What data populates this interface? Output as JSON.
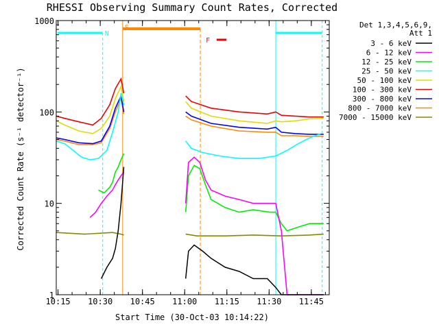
{
  "chart_data": {
    "type": "line",
    "title": "RHESSI Observing Summary Count Rates, Corrected",
    "xlabel": "Start Time (30-Oct-03 10:14:22)",
    "ylabel": "Corrected Count Rate (s⁻¹ detector⁻¹)",
    "y_scale": "log",
    "ylim": [
      1,
      1000
    ],
    "xlim_minutes_after_1014": [
      0,
      97
    ],
    "x_ticks": [
      "10:15",
      "10:30",
      "10:45",
      "11:00",
      "11:15",
      "11:30",
      "11:45"
    ],
    "y_ticks": [
      "1",
      "10",
      "100",
      "1000"
    ],
    "legend": {
      "placement": "right",
      "header": [
        "Det 1,3,4,5,6,9,",
        "Att 1"
      ],
      "entries": [
        {
          "name": "3 - 6 keV",
          "color": "#000000"
        },
        {
          "name": "6 - 12 keV",
          "color": "#ff00ff"
        },
        {
          "name": "12 - 25 keV",
          "color": "#00ee00"
        },
        {
          "name": "25 - 50 keV",
          "color": "#00ffff"
        },
        {
          "name": "50 - 100 keV",
          "color": "#dddd00"
        },
        {
          "name": "100 - 300 keV",
          "color": "#ee0000"
        },
        {
          "name": "300 - 800 keV",
          "color": "#0000ff"
        },
        {
          "name": "800 - 7000 keV",
          "color": "#ff8800"
        },
        {
          "name": "7000 - 15000 keV",
          "color": "#888800"
        }
      ]
    },
    "annotations": {
      "N": "N",
      "S": "S",
      "F": "F",
      "night_color": "#00ffff",
      "saa_color": "#ff8800",
      "flare_color": "#ee0000"
    },
    "series": [
      {
        "name": "100 - 300 keV",
        "x": [
          0,
          3,
          8,
          13,
          16,
          19,
          21,
          23,
          24,
          46,
          48,
          55,
          65,
          75,
          78,
          80,
          85,
          90,
          95
        ],
        "y": [
          90,
          85,
          78,
          72,
          85,
          120,
          180,
          230,
          160,
          150,
          130,
          110,
          100,
          95,
          100,
          92,
          90,
          88,
          88
        ]
      },
      {
        "name": "50 - 100 keV",
        "x": [
          0,
          3,
          8,
          13,
          16,
          19,
          21,
          23,
          24,
          46,
          48,
          55,
          65,
          75,
          78,
          80,
          85,
          90,
          95
        ],
        "y": [
          80,
          72,
          62,
          58,
          66,
          90,
          140,
          190,
          130,
          130,
          110,
          90,
          80,
          75,
          80,
          78,
          80,
          84,
          85
        ]
      },
      {
        "name": "300 - 800 keV",
        "x": [
          0,
          3,
          8,
          13,
          16,
          19,
          21,
          23,
          24,
          46,
          48,
          55,
          65,
          75,
          78,
          80,
          85,
          90,
          95
        ],
        "y": [
          52,
          50,
          46,
          45,
          48,
          70,
          110,
          150,
          100,
          100,
          90,
          75,
          68,
          65,
          68,
          60,
          58,
          57,
          57
        ]
      },
      {
        "name": "800 - 7000 keV",
        "x": [
          0,
          3,
          8,
          13,
          16,
          19,
          21,
          23,
          24,
          46,
          48,
          55,
          65,
          75,
          78,
          80,
          85,
          90,
          95
        ],
        "y": [
          50,
          48,
          44,
          44,
          46,
          66,
          100,
          140,
          95,
          90,
          82,
          70,
          62,
          60,
          60,
          55,
          55,
          54,
          54
        ]
      },
      {
        "name": "25 - 50 keV",
        "x": [
          0,
          3,
          6,
          9,
          12,
          15,
          18,
          20,
          22,
          23,
          24,
          46,
          48,
          52,
          58,
          65,
          72,
          78,
          82,
          86,
          90,
          94
        ],
        "y": [
          48,
          45,
          38,
          32,
          30,
          31,
          38,
          60,
          100,
          160,
          120,
          48,
          40,
          36,
          33,
          31,
          31,
          33,
          38,
          45,
          52,
          58
        ]
      },
      {
        "name": "12 - 25 keV",
        "x": [
          15,
          17,
          19,
          20,
          21,
          22,
          23,
          24,
          46,
          47,
          49,
          51,
          53,
          55,
          60,
          65,
          70,
          76,
          78,
          80,
          82,
          86,
          90,
          95
        ],
        "y": [
          14,
          13,
          15,
          17,
          22,
          25,
          30,
          35,
          8,
          20,
          26,
          24,
          16,
          11,
          9,
          8,
          8.5,
          8,
          8,
          6,
          5,
          5.5,
          6,
          6
        ]
      },
      {
        "name": "6 - 12 keV",
        "x": [
          12,
          14,
          16,
          18,
          20,
          21,
          22,
          23,
          24,
          46,
          47,
          49,
          51,
          53,
          55,
          60,
          65,
          70,
          75,
          78,
          80,
          82,
          86,
          90,
          95
        ],
        "y": [
          7,
          8,
          10,
          12,
          14,
          16,
          18,
          20,
          22,
          10,
          28,
          32,
          28,
          18,
          14,
          12,
          11,
          10,
          10,
          10,
          5,
          1,
          1,
          1,
          1
        ]
      },
      {
        "name": "3 - 6 keV",
        "x": [
          16,
          18,
          20,
          21,
          22,
          23,
          24,
          46,
          47,
          49,
          52,
          55,
          60,
          65,
          70,
          75,
          78,
          80,
          85,
          90,
          95
        ],
        "y": [
          1.5,
          2,
          2.5,
          3.2,
          5,
          10,
          25,
          1.5,
          3,
          3.5,
          3,
          2.5,
          2,
          1.8,
          1.5,
          1.5,
          1.2,
          1,
          1,
          1,
          1
        ]
      },
      {
        "name": "7000 - 15000 keV",
        "x": [
          0,
          10,
          20,
          23,
          24,
          46,
          50,
          60,
          70,
          80,
          90,
          95
        ],
        "y": [
          4.8,
          4.6,
          4.8,
          4.6,
          4.5,
          4.6,
          4.4,
          4.4,
          4.5,
          4.4,
          4.5,
          4.6
        ]
      }
    ]
  }
}
